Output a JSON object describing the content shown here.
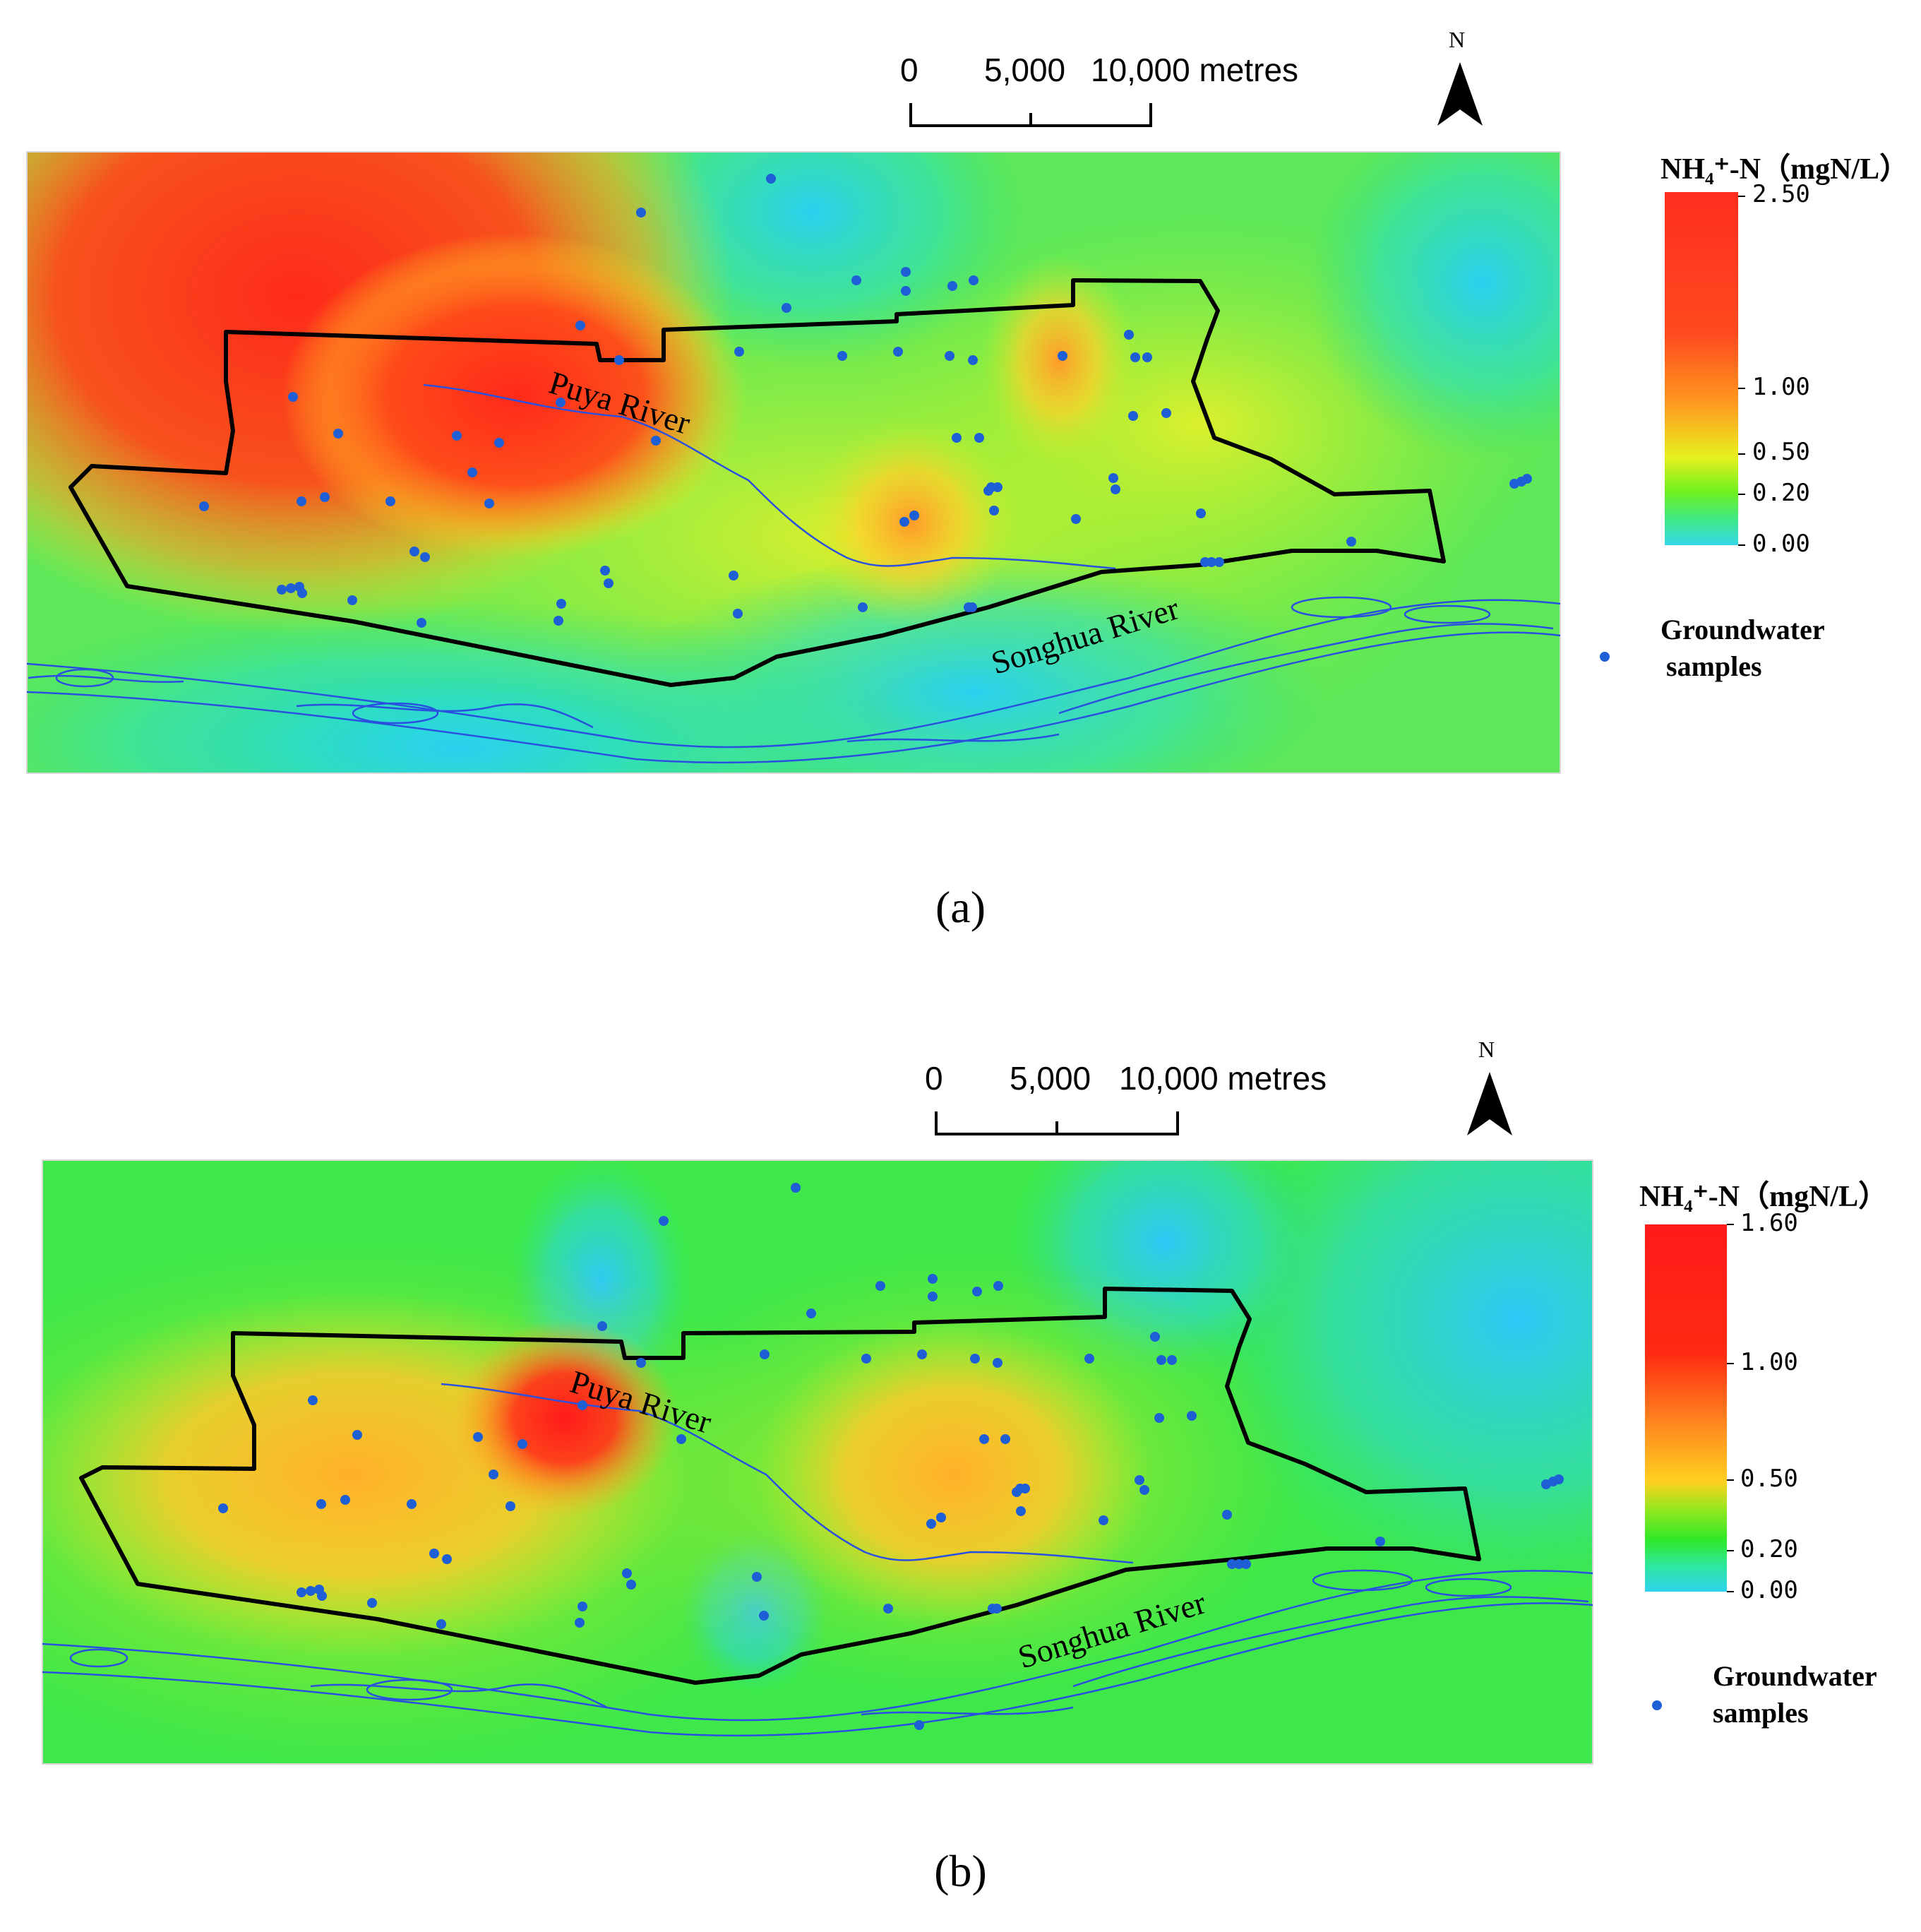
{
  "panels": [
    {
      "label": "(a)",
      "scale": {
        "labels": [
          "0",
          "5,000",
          "10,000 metres"
        ]
      },
      "north": "N",
      "legend": {
        "title": "NH₄⁺-N（mgN/L）",
        "ticks": [
          "2.50",
          "1.00",
          "0.50",
          "0.20",
          "0.00"
        ],
        "colors": [
          "#ff2d1f",
          "#ff6a1f",
          "#ffd21f",
          "#7ef01f",
          "#35d8e8"
        ]
      },
      "rivers": {
        "puya": "Puya River",
        "songhua": "Songhua River"
      },
      "samples_label": [
        "Groundwater",
        "samples"
      ]
    },
    {
      "label": "(b)",
      "scale": {
        "labels": [
          "0",
          "5,000",
          "10,000 metres"
        ]
      },
      "north": "N",
      "legend": {
        "title": "NH₄⁺-N（mgN/L）",
        "ticks": [
          "1.60",
          "1.00",
          "0.50",
          "0.20",
          "0.00"
        ],
        "colors": [
          "#ff1a1a",
          "#ff3a12",
          "#ffc21f",
          "#2ee82a",
          "#2ed2f0"
        ]
      },
      "rivers": {
        "puya": "Puya River",
        "songhua": "Songhua River"
      },
      "samples_label": [
        "Groundwater",
        "samples"
      ]
    }
  ]
}
